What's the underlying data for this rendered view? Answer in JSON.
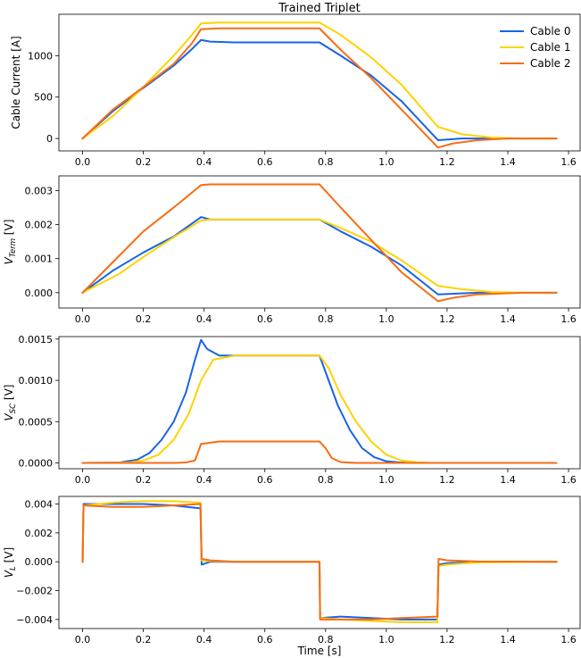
{
  "figure": {
    "title": "Trained Triplet",
    "xlabel": "Time [s]"
  },
  "colors": {
    "Cable 0": "#1764e6",
    "Cable 1": "#ffd200",
    "Cable 2": "#f76d14"
  },
  "chart_data": [
    {
      "type": "line",
      "ylabel": "Cable Current [A]",
      "xlim": [
        -0.078,
        1.638
      ],
      "ylim": [
        -150,
        1500
      ],
      "xticks": [
        0.0,
        0.2,
        0.4,
        0.6,
        0.8,
        1.0,
        1.2,
        1.4,
        1.6
      ],
      "xtick_labels": [
        "0.0",
        "0.2",
        "0.4",
        "0.6",
        "0.8",
        "1.0",
        "1.2",
        "1.4",
        "1.6"
      ],
      "yticks": [
        0,
        500,
        1000
      ],
      "ytick_labels": [
        "0",
        "500",
        "1000"
      ],
      "legend": {
        "location": "top-right",
        "entries": [
          "Cable 0",
          "Cable 1",
          "Cable 2"
        ]
      },
      "series": [
        {
          "name": "Cable 0",
          "x": [
            0,
            0.1,
            0.2,
            0.3,
            0.36,
            0.39,
            0.42,
            0.5,
            0.6,
            0.7,
            0.78,
            0.85,
            0.95,
            1.05,
            1.17,
            1.25,
            1.4,
            1.56
          ],
          "y": [
            0,
            330,
            610,
            880,
            1080,
            1190,
            1170,
            1160,
            1160,
            1160,
            1160,
            1000,
            760,
            450,
            -20,
            0,
            0,
            0
          ]
        },
        {
          "name": "Cable 1",
          "x": [
            0,
            0.1,
            0.2,
            0.3,
            0.36,
            0.39,
            0.45,
            0.6,
            0.78,
            0.85,
            0.95,
            1.05,
            1.17,
            1.25,
            1.35,
            1.45,
            1.56
          ],
          "y": [
            0,
            270,
            620,
            1000,
            1250,
            1390,
            1400,
            1400,
            1400,
            1250,
            980,
            650,
            140,
            50,
            10,
            0,
            0
          ]
        },
        {
          "name": "Cable 2",
          "x": [
            0,
            0.1,
            0.2,
            0.3,
            0.36,
            0.39,
            0.45,
            0.6,
            0.78,
            0.85,
            0.95,
            1.05,
            1.17,
            1.22,
            1.3,
            1.4,
            1.56
          ],
          "y": [
            0,
            350,
            620,
            900,
            1150,
            1320,
            1330,
            1330,
            1330,
            1070,
            730,
            350,
            -110,
            -60,
            -20,
            0,
            0
          ]
        }
      ]
    },
    {
      "type": "line",
      "ylabel_main": "V",
      "ylabel_sub": "Term",
      "ylabel_unit": " [V]",
      "xlim": [
        -0.078,
        1.638
      ],
      "ylim": [
        -0.00045,
        0.00343
      ],
      "xticks": [
        0.0,
        0.2,
        0.4,
        0.6,
        0.8,
        1.0,
        1.2,
        1.4,
        1.6
      ],
      "xtick_labels": [
        "0.0",
        "0.2",
        "0.4",
        "0.6",
        "0.8",
        "1.0",
        "1.2",
        "1.4",
        "1.6"
      ],
      "yticks": [
        0,
        0.001,
        0.002,
        0.003
      ],
      "ytick_labels": [
        "0.000",
        "0.001",
        "0.002",
        "0.003"
      ],
      "series": [
        {
          "name": "Cable 0",
          "x": [
            0,
            0.1,
            0.2,
            0.3,
            0.39,
            0.42,
            0.5,
            0.6,
            0.78,
            0.85,
            0.95,
            1.05,
            1.17,
            1.3,
            1.45,
            1.56
          ],
          "y": [
            0,
            0.00065,
            0.00118,
            0.00165,
            0.00222,
            0.00215,
            0.00215,
            0.00215,
            0.00215,
            0.0018,
            0.00135,
            0.0008,
            -5e-05,
            0.0,
            0.0,
            0.0
          ]
        },
        {
          "name": "Cable 1",
          "x": [
            0,
            0.12,
            0.2,
            0.3,
            0.39,
            0.42,
            0.5,
            0.6,
            0.78,
            0.85,
            0.95,
            1.05,
            1.17,
            1.25,
            1.35,
            1.45,
            1.56
          ],
          "y": [
            0,
            0.00055,
            0.00105,
            0.00163,
            0.00212,
            0.00215,
            0.00215,
            0.00215,
            0.00215,
            0.0019,
            0.0015,
            0.00095,
            0.0002,
            0.0001,
            2e-05,
            0.0,
            0.0
          ]
        },
        {
          "name": "Cable 2",
          "x": [
            0,
            0.1,
            0.2,
            0.3,
            0.39,
            0.42,
            0.5,
            0.6,
            0.78,
            0.85,
            0.95,
            1.05,
            1.17,
            1.22,
            1.3,
            1.45,
            1.56
          ],
          "y": [
            0,
            0.0009,
            0.0018,
            0.0025,
            0.00316,
            0.00318,
            0.00318,
            0.00318,
            0.00318,
            0.0025,
            0.00155,
            0.0006,
            -0.00025,
            -0.00015,
            -5e-05,
            0.0,
            0.0
          ]
        }
      ]
    },
    {
      "type": "line",
      "ylabel_main": "V",
      "ylabel_sub": "SC",
      "ylabel_unit": " [V]",
      "xlim": [
        -0.078,
        1.638
      ],
      "ylim": [
        -7e-05,
        0.00153
      ],
      "xticks": [
        0.0,
        0.2,
        0.4,
        0.6,
        0.8,
        1.0,
        1.2,
        1.4,
        1.6
      ],
      "xtick_labels": [
        "0.0",
        "0.2",
        "0.4",
        "0.6",
        "0.8",
        "1.0",
        "1.2",
        "1.4",
        "1.6"
      ],
      "yticks": [
        0,
        0.0005,
        0.001,
        0.0015
      ],
      "ytick_labels": [
        "0.0000",
        "0.0005",
        "0.0010",
        "0.0015"
      ],
      "series": [
        {
          "name": "Cable 0",
          "x": [
            0,
            0.12,
            0.18,
            0.22,
            0.26,
            0.3,
            0.34,
            0.37,
            0.39,
            0.41,
            0.45,
            0.55,
            0.78,
            0.8,
            0.84,
            0.88,
            0.92,
            0.96,
            1.0,
            1.05,
            1.1,
            1.56
          ],
          "y": [
            0,
            5e-06,
            4e-05,
            0.00012,
            0.00028,
            0.0005,
            0.00085,
            0.00125,
            0.00149,
            0.00138,
            0.0013,
            0.0013,
            0.0013,
            0.0011,
            0.0007,
            0.0004,
            0.00018,
            7e-05,
            2e-05,
            5e-06,
            0,
            0
          ]
        },
        {
          "name": "Cable 1",
          "x": [
            0,
            0.15,
            0.2,
            0.25,
            0.3,
            0.35,
            0.39,
            0.43,
            0.5,
            0.78,
            0.81,
            0.85,
            0.9,
            0.95,
            1.0,
            1.05,
            1.1,
            1.15,
            1.56
          ],
          "y": [
            0,
            5e-06,
            3e-05,
            0.0001,
            0.00028,
            0.0006,
            0.001,
            0.00125,
            0.0013,
            0.0013,
            0.00115,
            0.00082,
            0.0005,
            0.00026,
            0.0001,
            3e-05,
            8e-06,
            0,
            0
          ]
        },
        {
          "name": "Cable 2",
          "x": [
            0,
            0.3,
            0.34,
            0.37,
            0.39,
            0.45,
            0.6,
            0.78,
            0.8,
            0.82,
            0.85,
            0.9,
            1.56
          ],
          "y": [
            0,
            0,
            5e-06,
            3e-05,
            0.00023,
            0.00026,
            0.00026,
            0.00026,
            0.00018,
            6e-05,
            1e-05,
            0,
            0
          ]
        }
      ]
    },
    {
      "type": "line",
      "ylabel_main": "V",
      "ylabel_sub": "L",
      "ylabel_unit": " [V]",
      "xlim": [
        -0.078,
        1.638
      ],
      "ylim": [
        -0.00463,
        0.00453
      ],
      "xticks": [
        0.0,
        0.2,
        0.4,
        0.6,
        0.8,
        1.0,
        1.2,
        1.4,
        1.6
      ],
      "xtick_labels": [
        "0.0",
        "0.2",
        "0.4",
        "0.6",
        "0.8",
        "1.0",
        "1.2",
        "1.4",
        "1.6"
      ],
      "yticks": [
        -0.004,
        -0.002,
        0,
        0.002,
        0.004
      ],
      "ytick_labels": [
        "−0.004",
        "−0.002",
        "0.000",
        "0.002",
        "0.004"
      ],
      "series": [
        {
          "name": "Cable 0",
          "x": [
            0,
            0.003,
            0.1,
            0.2,
            0.3,
            0.388,
            0.392,
            0.42,
            0.5,
            0.78,
            0.782,
            0.85,
            0.95,
            1.05,
            1.168,
            1.172,
            1.2,
            1.3,
            1.56
          ],
          "y": [
            0,
            0.004,
            0.004,
            0.004,
            0.0039,
            0.0037,
            -0.0002,
            0,
            0,
            0,
            -0.0039,
            -0.0038,
            -0.0039,
            -0.004,
            -0.004,
            -0.0002,
            -0.0001,
            0,
            0
          ]
        },
        {
          "name": "Cable 1",
          "x": [
            0,
            0.003,
            0.1,
            0.2,
            0.3,
            0.388,
            0.392,
            0.42,
            0.5,
            0.78,
            0.782,
            0.85,
            0.95,
            1.05,
            1.168,
            1.172,
            1.2,
            1.3,
            1.56
          ],
          "y": [
            0,
            0.0039,
            0.0041,
            0.0042,
            0.0042,
            0.0041,
            0.0001,
            5e-05,
            0,
            0,
            -0.0039,
            -0.004,
            -0.0041,
            -0.0042,
            -0.0042,
            -0.0003,
            -0.0002,
            -5e-05,
            0
          ]
        },
        {
          "name": "Cable 2",
          "x": [
            0,
            0.003,
            0.1,
            0.2,
            0.3,
            0.388,
            0.392,
            0.42,
            0.5,
            0.78,
            0.782,
            0.85,
            0.95,
            1.05,
            1.168,
            1.172,
            1.2,
            1.3,
            1.56
          ],
          "y": [
            0,
            0.0039,
            0.0038,
            0.0038,
            0.0039,
            0.004,
            0.0002,
            0.0001,
            0,
            0,
            -0.004,
            -0.004,
            -0.004,
            -0.0039,
            -0.0038,
            0.0002,
            0.0001,
            2e-05,
            0
          ]
        }
      ]
    }
  ]
}
